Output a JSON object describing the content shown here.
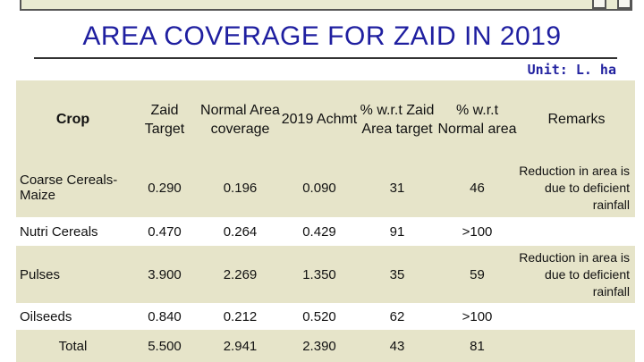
{
  "title": "AREA COVERAGE FOR ZAID IN 2019",
  "unit": "Unit: L. ha",
  "headers": {
    "crop": "Crop",
    "target": "Zaid Target",
    "normal": "Normal Area coverage",
    "achmt": "2019 Achmt",
    "pct_target": "% w.r.t Zaid Area target",
    "pct_normal": "% w.r.t Normal area",
    "remarks": "Remarks"
  },
  "rows": [
    {
      "crop": "Coarse Cereals- Maize",
      "target": "0.290",
      "normal": "0.196",
      "achmt": "0.090",
      "pct_target": "31",
      "pct_normal": "46",
      "remarks": "Reduction in area is due to deficient rainfall"
    },
    {
      "crop": "Nutri Cereals",
      "target": "0.470",
      "normal": "0.264",
      "achmt": "0.429",
      "pct_target": "91",
      "pct_normal": ">100",
      "remarks": ""
    },
    {
      "crop": "Pulses",
      "target": "3.900",
      "normal": "2.269",
      "achmt": "1.350",
      "pct_target": "35",
      "pct_normal": "59",
      "remarks": "Reduction in area is due to deficient rainfall"
    },
    {
      "crop": "Oilseeds",
      "target": "0.840",
      "normal": "0.212",
      "achmt": "0.520",
      "pct_target": "62",
      "pct_normal": ">100",
      "remarks": ""
    },
    {
      "crop": "Total",
      "target": "5.500",
      "normal": "2.941",
      "achmt": "2.390",
      "pct_target": "43",
      "pct_normal": "81",
      "remarks": ""
    }
  ]
}
